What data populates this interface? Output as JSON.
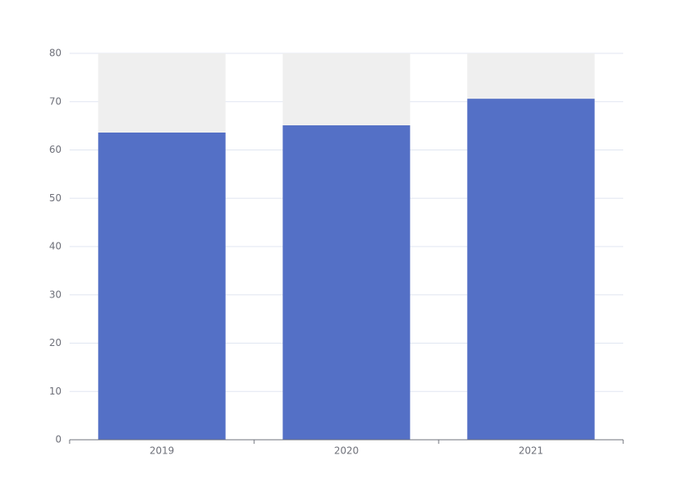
{
  "chart_data": {
    "type": "bar",
    "categories": [
      "2019",
      "2020",
      "2021"
    ],
    "values": [
      63.6,
      65.1,
      70.6
    ],
    "color": "#5470c6",
    "background_color": "#efefef",
    "ylim": [
      0,
      80
    ],
    "yticks": [
      0,
      10,
      20,
      30,
      40,
      50,
      60,
      70,
      80
    ],
    "grid": true
  }
}
